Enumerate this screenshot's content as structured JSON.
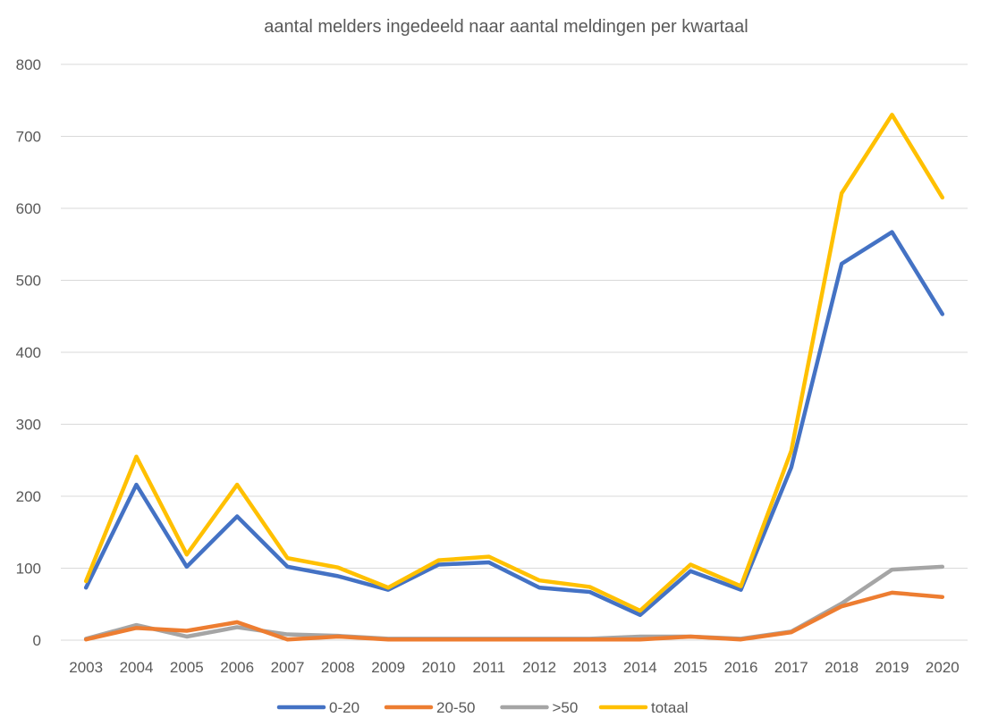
{
  "chart_data": {
    "type": "line",
    "title": "aantal melders ingedeeld naar aantal meldingen per kwartaal",
    "xlabel": "",
    "ylabel": "",
    "ylim": [
      0,
      800
    ],
    "yticks": [
      "0",
      "100",
      "200",
      "300",
      "400",
      "500",
      "600",
      "700",
      "800"
    ],
    "categories": [
      "2003",
      "2004",
      "2005",
      "2006",
      "2007",
      "2008",
      "2009",
      "2010",
      "2011",
      "2012",
      "2013",
      "2014",
      "2015",
      "2016",
      "2017",
      "2018",
      "2019",
      "2020"
    ],
    "grid": true,
    "legend_position": "bottom",
    "series": [
      {
        "name": "0-20",
        "color": "#4472C4",
        "values": [
          73,
          216,
          102,
          172,
          102,
          89,
          70,
          105,
          108,
          73,
          67,
          35,
          96,
          70,
          240,
          523,
          567,
          453
        ]
      },
      {
        "name": "20-50",
        "color": "#ED7D31",
        "values": [
          1,
          17,
          13,
          25,
          1,
          5,
          1,
          1,
          1,
          1,
          1,
          1,
          5,
          1,
          11,
          47,
          66,
          60
        ]
      },
      {
        "name": ">50",
        "color": "#A5A5A5",
        "values": [
          2,
          21,
          5,
          18,
          8,
          6,
          2,
          2,
          2,
          2,
          2,
          5,
          5,
          2,
          12,
          51,
          98,
          102
        ]
      },
      {
        "name": "totaal",
        "color": "#FFC000",
        "values": [
          82,
          255,
          119,
          216,
          114,
          101,
          73,
          111,
          116,
          83,
          74,
          41,
          105,
          75,
          263,
          621,
          730,
          615
        ]
      }
    ]
  }
}
